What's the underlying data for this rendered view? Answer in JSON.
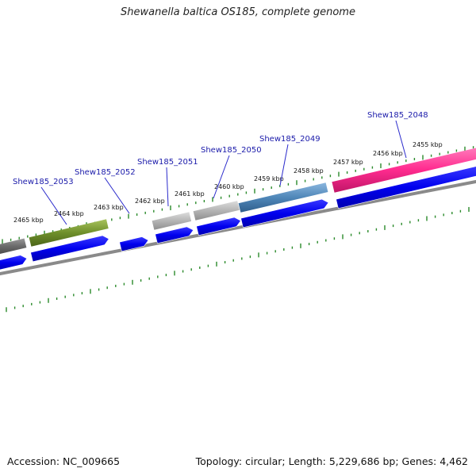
{
  "title": "Shewanella baltica OS185, complete genome",
  "footer": {
    "accession": "Accession: NC_009665",
    "stats": "Topology: circular; Length: 5,229,686 bp; Genes: 4,462"
  },
  "kbp_labels": [
    "2455 kbp",
    "2456 kbp",
    "2457 kbp",
    "2458 kbp",
    "2459 kbp",
    "2460 kbp",
    "2461 kbp",
    "2462 kbp",
    "2463 kbp",
    "2464 kbp",
    "2465 kbp"
  ],
  "gene_labels": [
    "Shew185_2048",
    "Shew185_2049",
    "Shew185_2050",
    "Shew185_2051",
    "Shew185_2052",
    "Shew185_2053"
  ],
  "colors": {
    "tick": "#2a8a2a",
    "cds_blue": "#0000ee",
    "pink": "#ff2b8f",
    "steel": "#4f86b8",
    "olive": "#6e8f2a",
    "gray_light": "#b4b4b4",
    "gray_dark": "#6a6a6a",
    "backbone": "#8a8a8a",
    "label": "#1a1aaa"
  }
}
